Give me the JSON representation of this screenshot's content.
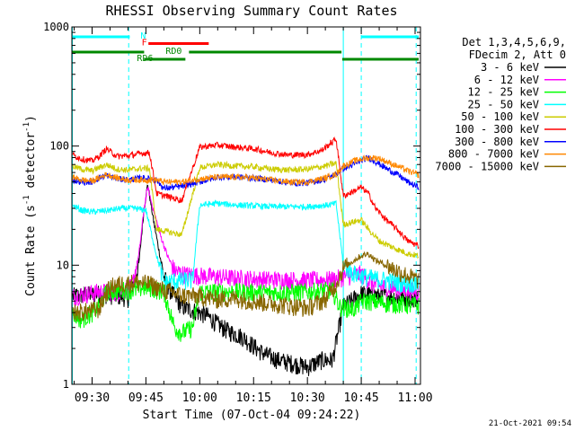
{
  "chart_data": {
    "type": "line",
    "title": "RHESSI Observing Summary Count Rates",
    "xlabel": "Start Time (07-Oct-04 09:24:22)",
    "ylabel_prefix": "Count Rate (s",
    "ylabel_mid": " detector",
    "ylabel_exp": "-1",
    "ylabel_close": ")",
    "yscale": "log",
    "ylim": [
      1,
      1000
    ],
    "y_ticks": [
      {
        "value": 1,
        "label": "1"
      },
      {
        "value": 10,
        "label": "10"
      },
      {
        "value": 100,
        "label": "100"
      },
      {
        "value": 1000,
        "label": "1000"
      }
    ],
    "x_ticks": [
      {
        "minutes": 930,
        "label": "09:30"
      },
      {
        "minutes": 945,
        "label": "09:45"
      },
      {
        "minutes": 960,
        "label": "10:00"
      },
      {
        "minutes": 975,
        "label": "10:15"
      },
      {
        "minutes": 990,
        "label": "10:30"
      },
      {
        "minutes": 1005,
        "label": "10:45"
      },
      {
        "minutes": 1020,
        "label": "11:00"
      }
    ],
    "xlim_minutes": [
      924.37,
      1021.5
    ],
    "legend_header": [
      "Det 1,3,4,5,6,9,",
      "FDecim 2, Att 0"
    ],
    "legend_position": "right",
    "timestamp": "21-Oct-2021 09:54",
    "series": [
      {
        "name": "3 - 6 keV",
        "color": "#000000",
        "points": [
          [
            924.4,
            5.5
          ],
          [
            932,
            5.8
          ],
          [
            938,
            5.5
          ],
          [
            940,
            5.3
          ],
          [
            943,
            10
          ],
          [
            944.5,
            30
          ],
          [
            945.5,
            48
          ],
          [
            947,
            25
          ],
          [
            948.5,
            14
          ],
          [
            950,
            8
          ],
          [
            952,
            6
          ],
          [
            955,
            4.5
          ],
          [
            958,
            4.2
          ],
          [
            962,
            3.8
          ],
          [
            965,
            3.2
          ],
          [
            968,
            2.8
          ],
          [
            972,
            2.5
          ],
          [
            975,
            2.1
          ],
          [
            978,
            1.8
          ],
          [
            982,
            1.6
          ],
          [
            986,
            1.5
          ],
          [
            990,
            1.4
          ],
          [
            994,
            1.6
          ],
          [
            997,
            1.6
          ],
          [
            1000,
            4.5
          ],
          [
            1005,
            5.8
          ],
          [
            1010,
            5.6
          ],
          [
            1015,
            5.4
          ],
          [
            1021,
            5.3
          ]
        ]
      },
      {
        "name": "6 - 12 keV",
        "color": "#ff00ff",
        "points": [
          [
            924.4,
            5.5
          ],
          [
            932,
            6
          ],
          [
            938,
            6
          ],
          [
            941,
            6.5
          ],
          [
            943,
            12
          ],
          [
            944.5,
            30
          ],
          [
            945.5,
            45
          ],
          [
            947,
            30
          ],
          [
            949,
            18
          ],
          [
            951,
            12
          ],
          [
            953,
            9
          ],
          [
            956,
            8.4
          ],
          [
            960,
            8.2
          ],
          [
            970,
            7.8
          ],
          [
            980,
            7.6
          ],
          [
            990,
            7.5
          ],
          [
            997,
            7.6
          ],
          [
            1000,
            8
          ],
          [
            1005,
            8.5
          ],
          [
            1008,
            7
          ],
          [
            1012,
            6.5
          ],
          [
            1021,
            6
          ]
        ]
      },
      {
        "name": "12 - 25 keV",
        "color": "#00ff00",
        "points": [
          [
            924.4,
            4
          ],
          [
            927,
            3.5
          ],
          [
            930,
            4
          ],
          [
            932,
            4.5
          ],
          [
            934,
            6
          ],
          [
            938,
            6.2
          ],
          [
            942,
            6.2
          ],
          [
            944,
            6.5
          ],
          [
            946,
            6.5
          ],
          [
            950,
            6
          ],
          [
            953,
            3
          ],
          [
            955,
            2.7
          ],
          [
            958,
            3
          ],
          [
            960,
            6
          ],
          [
            970,
            6
          ],
          [
            980,
            5.9
          ],
          [
            990,
            6
          ],
          [
            997,
            6.2
          ],
          [
            999,
            4.5
          ],
          [
            1003,
            4.3
          ],
          [
            1005,
            5
          ],
          [
            1008,
            5
          ],
          [
            1012,
            4.8
          ],
          [
            1021,
            4.6
          ]
        ]
      },
      {
        "name": "25 - 50 keV",
        "color": "#00ffff",
        "points": [
          [
            924.4,
            32
          ],
          [
            927,
            29
          ],
          [
            930,
            28
          ],
          [
            935,
            29
          ],
          [
            938,
            30
          ],
          [
            942,
            30
          ],
          [
            945,
            29
          ],
          [
            948,
            12
          ],
          [
            950,
            7.2
          ],
          [
            953,
            7.4
          ],
          [
            958,
            7.5
          ],
          [
            960,
            32
          ],
          [
            965,
            33
          ],
          [
            970,
            32
          ],
          [
            980,
            31
          ],
          [
            990,
            31
          ],
          [
            996,
            32
          ],
          [
            998,
            33
          ],
          [
            1000,
            10
          ],
          [
            1003,
            8.5
          ],
          [
            1005,
            8.2
          ],
          [
            1008,
            7.8
          ],
          [
            1012,
            7.5
          ],
          [
            1015,
            7.2
          ],
          [
            1021,
            7
          ]
        ]
      },
      {
        "name": "50 - 100 keV",
        "color": "#cccc00",
        "points": [
          [
            924.4,
            68
          ],
          [
            927,
            64
          ],
          [
            930,
            62
          ],
          [
            932,
            66
          ],
          [
            934,
            70
          ],
          [
            937,
            64
          ],
          [
            940,
            63
          ],
          [
            944,
            65
          ],
          [
            946,
            65
          ],
          [
            948,
            20
          ],
          [
            955,
            18
          ],
          [
            960,
            66
          ],
          [
            965,
            70
          ],
          [
            970,
            68
          ],
          [
            975,
            67
          ],
          [
            980,
            64
          ],
          [
            985,
            63
          ],
          [
            990,
            64
          ],
          [
            995,
            68
          ],
          [
            998,
            72
          ],
          [
            1000,
            22
          ],
          [
            1005,
            24
          ],
          [
            1007,
            20
          ],
          [
            1010,
            16
          ],
          [
            1014,
            14
          ],
          [
            1018,
            12.5
          ],
          [
            1021,
            12
          ]
        ]
      },
      {
        "name": "100 - 300 keV",
        "color": "#ff0000",
        "points": [
          [
            924.4,
            85
          ],
          [
            927,
            78
          ],
          [
            930,
            75
          ],
          [
            932,
            82
          ],
          [
            934,
            95
          ],
          [
            937,
            82
          ],
          [
            940,
            83
          ],
          [
            944,
            87
          ],
          [
            946,
            88
          ],
          [
            948,
            40
          ],
          [
            955,
            35
          ],
          [
            960,
            98
          ],
          [
            965,
            102
          ],
          [
            970,
            98
          ],
          [
            975,
            95
          ],
          [
            980,
            88
          ],
          [
            985,
            84
          ],
          [
            990,
            85
          ],
          [
            994,
            92
          ],
          [
            998,
            115
          ],
          [
            1000,
            38
          ],
          [
            1003,
            42
          ],
          [
            1005,
            45
          ],
          [
            1007,
            40
          ],
          [
            1009,
            30
          ],
          [
            1012,
            24
          ],
          [
            1015,
            20
          ],
          [
            1018,
            16
          ],
          [
            1021,
            14.5
          ]
        ]
      },
      {
        "name": "300 - 800 keV",
        "color": "#0000ff",
        "points": [
          [
            924.4,
            52
          ],
          [
            927,
            50
          ],
          [
            930,
            50
          ],
          [
            932,
            54
          ],
          [
            934,
            57
          ],
          [
            937,
            53
          ],
          [
            940,
            52
          ],
          [
            944,
            54
          ],
          [
            946,
            53
          ],
          [
            948,
            52
          ],
          [
            950,
            44
          ],
          [
            955,
            46
          ],
          [
            960,
            50
          ],
          [
            965,
            55
          ],
          [
            970,
            55
          ],
          [
            975,
            54
          ],
          [
            980,
            52
          ],
          [
            985,
            49
          ],
          [
            990,
            49
          ],
          [
            995,
            53
          ],
          [
            998,
            58
          ],
          [
            1000,
            65
          ],
          [
            1003,
            70
          ],
          [
            1005,
            76
          ],
          [
            1007,
            80
          ],
          [
            1009,
            74
          ],
          [
            1012,
            65
          ],
          [
            1015,
            58
          ],
          [
            1018,
            50
          ],
          [
            1021,
            45
          ]
        ]
      },
      {
        "name": "800 - 7000 keV",
        "color": "#ff8800",
        "points": [
          [
            924.4,
            55
          ],
          [
            927,
            52
          ],
          [
            930,
            51
          ],
          [
            932,
            54
          ],
          [
            934,
            58
          ],
          [
            937,
            54
          ],
          [
            940,
            52
          ],
          [
            944,
            52
          ],
          [
            946,
            52
          ],
          [
            948,
            52
          ],
          [
            950,
            50
          ],
          [
            955,
            50
          ],
          [
            960,
            53
          ],
          [
            965,
            55
          ],
          [
            970,
            55
          ],
          [
            975,
            54
          ],
          [
            980,
            52
          ],
          [
            985,
            50
          ],
          [
            990,
            50
          ],
          [
            995,
            54
          ],
          [
            998,
            58
          ],
          [
            1000,
            68
          ],
          [
            1003,
            75
          ],
          [
            1005,
            78
          ],
          [
            1008,
            80
          ],
          [
            1010,
            79
          ],
          [
            1012,
            74
          ],
          [
            1015,
            68
          ],
          [
            1018,
            62
          ],
          [
            1021,
            57
          ]
        ]
      },
      {
        "name": "7000 - 15000 keV",
        "color": "#886600",
        "points": [
          [
            924.4,
            4
          ],
          [
            928,
            4.1
          ],
          [
            932,
            4.3
          ],
          [
            934,
            6
          ],
          [
            936,
            6.8
          ],
          [
            938,
            7
          ],
          [
            942,
            7.2
          ],
          [
            946,
            7
          ],
          [
            950,
            6.2
          ],
          [
            955,
            5.6
          ],
          [
            960,
            5.5
          ],
          [
            965,
            5.2
          ],
          [
            970,
            5.3
          ],
          [
            975,
            5
          ],
          [
            980,
            4.8
          ],
          [
            985,
            4.6
          ],
          [
            990,
            4.4
          ],
          [
            995,
            5.2
          ],
          [
            998,
            7
          ],
          [
            1000,
            9.5
          ],
          [
            1003,
            11
          ],
          [
            1005,
            12
          ],
          [
            1007,
            12.5
          ],
          [
            1009,
            11
          ],
          [
            1012,
            10
          ],
          [
            1015,
            9
          ],
          [
            1018,
            8.2
          ],
          [
            1021,
            7.5
          ]
        ]
      }
    ],
    "markers": [
      {
        "label": "N",
        "color": "#00ffff",
        "start": 924.4,
        "end": 940.5,
        "row": 0
      },
      {
        "label": "N",
        "color": "#00ffff",
        "start": 1005,
        "end": 1021,
        "row": 0
      },
      {
        "label": "F",
        "color": "#ff0000",
        "start": 945.7,
        "end": 962.5,
        "row": 1
      },
      {
        "label": "RD0",
        "color": "#008800",
        "start": 924.4,
        "end": 944.5,
        "row": 2
      },
      {
        "label": "RD0",
        "color": "#008800",
        "start": 957,
        "end": 999.5,
        "row": 2
      },
      {
        "label": "RD0",
        "color": "#008800",
        "start": 999.7,
        "end": 1021,
        "row": 3
      },
      {
        "label": "RD6",
        "color": "#008800",
        "start": 944.5,
        "end": 956,
        "row": 3
      }
    ],
    "marker_labels": [
      {
        "text": "N",
        "color": "#00ffff",
        "minutes": 943.5,
        "row": 0
      },
      {
        "text": "F",
        "color": "#ff0000",
        "minutes": 943.8,
        "row": 1
      },
      {
        "text": "RD0",
        "color": "#008800",
        "minutes": 950.5,
        "row": 2
      },
      {
        "text": "RD6",
        "color": "#008800",
        "minutes": 942.5,
        "row": 3
      }
    ],
    "vlines": [
      {
        "minutes": 940.2,
        "color": "#00ffff",
        "dashed": true
      },
      {
        "minutes": 1005,
        "color": "#00ffff",
        "dashed": true
      },
      {
        "minutes": 1020.3,
        "color": "#00ffff",
        "dashed": true
      },
      {
        "minutes": 924.5,
        "color": "#00ffff",
        "dashed": false
      },
      {
        "minutes": 1000,
        "color": "#00ffff",
        "dashed": false
      }
    ],
    "grid": false
  }
}
